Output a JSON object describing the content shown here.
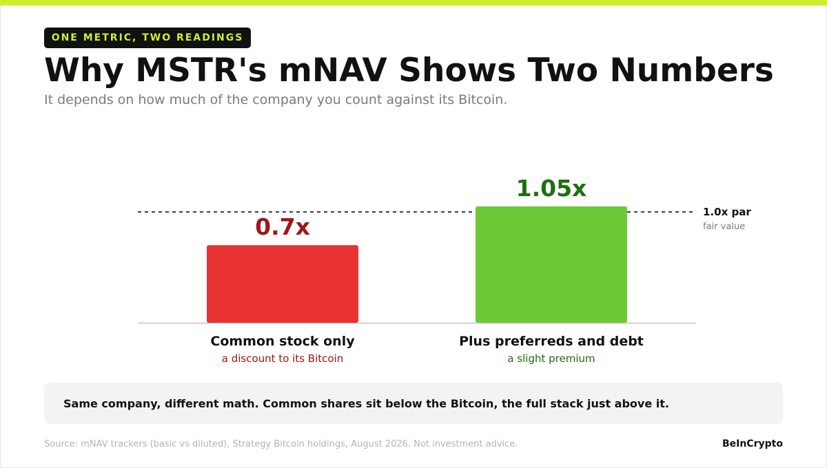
{
  "header": {
    "kicker": "ONE METRIC, TWO READINGS",
    "title": "Why MSTR's mNAV Shows Two Numbers",
    "subtitle": "It depends on how much of the company you count against its Bitcoin."
  },
  "chart_data": {
    "type": "bar",
    "categories": [
      "Common stock only",
      "Plus preferreds and debt"
    ],
    "values": [
      0.7,
      1.05
    ],
    "value_labels": [
      "0.7x",
      "1.05x"
    ],
    "category_sublabels": [
      "a discount to its Bitcoin",
      "a slight premium"
    ],
    "bar_colors": [
      "#e83232",
      "#6cc935"
    ],
    "value_label_colors": [
      "#a01717",
      "#1f6e12"
    ],
    "reference_line": {
      "value": 1.0,
      "label": "1.0x par",
      "sublabel": "fair value"
    },
    "ylim": [
      0,
      1.08
    ],
    "grid": false
  },
  "note": "Same company, different math. Common shares sit below the Bitcoin, the full stack just above it.",
  "footer": {
    "source": "Source: mNAV trackers (basic vs diluted), Strategy Bitcoin holdings, August 2026. Not investment advice.",
    "brand": "BeInCrypto"
  }
}
